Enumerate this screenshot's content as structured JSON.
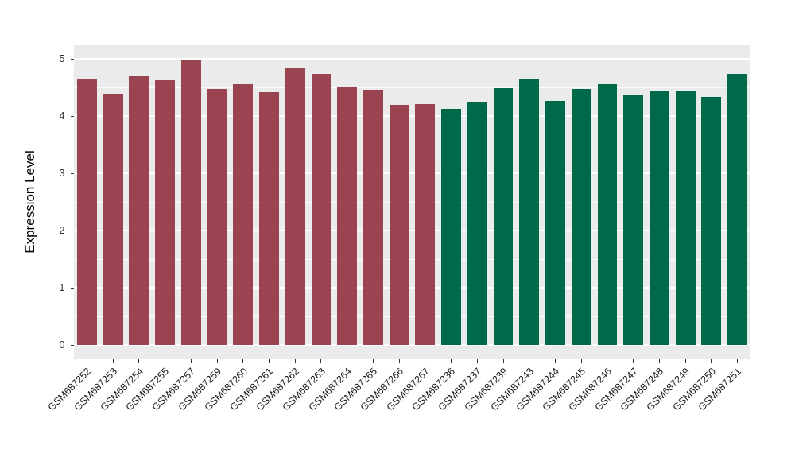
{
  "chart_data": {
    "type": "bar",
    "ylabel": "Expression Level",
    "ylim": [
      0,
      5
    ],
    "y_expansion_frac": 0.05,
    "y_major_ticks": [
      0,
      1,
      2,
      3,
      4,
      5
    ],
    "y_minor_ticks": [
      0.5,
      1.5,
      2.5,
      3.5,
      4.5
    ],
    "grid": true,
    "legend_position": "none",
    "panel_bg": "#EBEBEB",
    "grid_color": "#FFFFFF",
    "colors": {
      "red": "#9A4452",
      "green": "#00694A"
    },
    "bar_width_frac": 0.76,
    "bars": [
      {
        "label": "GSM687252",
        "value": 4.64,
        "color_group": "red"
      },
      {
        "label": "GSM687253",
        "value": 4.39,
        "color_group": "red"
      },
      {
        "label": "GSM687254",
        "value": 4.7,
        "color_group": "red"
      },
      {
        "label": "GSM687255",
        "value": 4.63,
        "color_group": "red"
      },
      {
        "label": "GSM687257",
        "value": 4.98,
        "color_group": "red"
      },
      {
        "label": "GSM687259",
        "value": 4.47,
        "color_group": "red"
      },
      {
        "label": "GSM687260",
        "value": 4.56,
        "color_group": "red"
      },
      {
        "label": "GSM687261",
        "value": 4.41,
        "color_group": "red"
      },
      {
        "label": "GSM687262",
        "value": 4.84,
        "color_group": "red"
      },
      {
        "label": "GSM687263",
        "value": 4.74,
        "color_group": "red"
      },
      {
        "label": "GSM687264",
        "value": 4.52,
        "color_group": "red"
      },
      {
        "label": "GSM687265",
        "value": 4.46,
        "color_group": "red"
      },
      {
        "label": "GSM687266",
        "value": 4.2,
        "color_group": "red"
      },
      {
        "label": "GSM687267",
        "value": 4.21,
        "color_group": "red"
      },
      {
        "label": "GSM687236",
        "value": 4.13,
        "color_group": "green"
      },
      {
        "label": "GSM687237",
        "value": 4.25,
        "color_group": "green"
      },
      {
        "label": "GSM687239",
        "value": 4.48,
        "color_group": "green"
      },
      {
        "label": "GSM687243",
        "value": 4.64,
        "color_group": "green"
      },
      {
        "label": "GSM687244",
        "value": 4.27,
        "color_group": "green"
      },
      {
        "label": "GSM687245",
        "value": 4.47,
        "color_group": "green"
      },
      {
        "label": "GSM687246",
        "value": 4.56,
        "color_group": "green"
      },
      {
        "label": "GSM687247",
        "value": 4.38,
        "color_group": "green"
      },
      {
        "label": "GSM687248",
        "value": 4.44,
        "color_group": "green"
      },
      {
        "label": "GSM687249",
        "value": 4.45,
        "color_group": "green"
      },
      {
        "label": "GSM687250",
        "value": 4.34,
        "color_group": "green"
      },
      {
        "label": "GSM687251",
        "value": 4.73,
        "color_group": "green"
      }
    ]
  }
}
